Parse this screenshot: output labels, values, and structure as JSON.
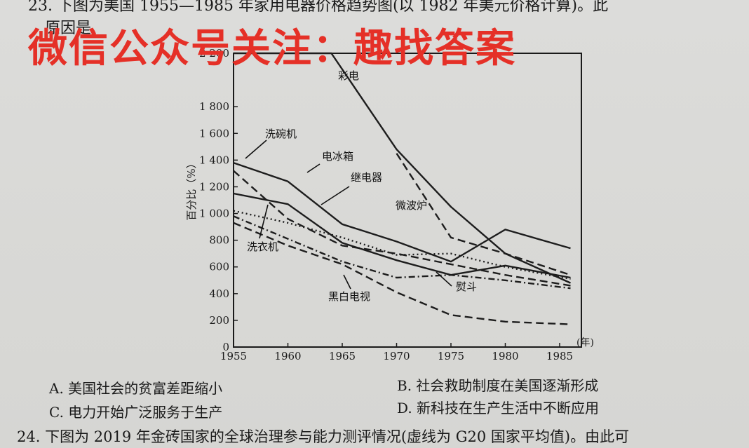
{
  "question23": {
    "stem_line1": "23. 下图为美国 1955—1985 年家用电器价格趋势图(以 1982 年美元价格计算)。此",
    "stem_line2": "原因是"
  },
  "watermark": "微信公众号关注：趣找答案",
  "chart_data": {
    "type": "line",
    "ylabel": "百分比（%）",
    "x_unit": "(年)",
    "xlim": [
      1955,
      1987
    ],
    "ylim": [
      0,
      2200
    ],
    "x_ticks": [
      "1955",
      "1960",
      "1965",
      "1970",
      "1975",
      "1980",
      "1985"
    ],
    "x_tick_values": [
      1955,
      1960,
      1965,
      1970,
      1975,
      1980,
      1985
    ],
    "y_ticks": [
      "0",
      "200",
      "400",
      "600",
      "800",
      "1 000",
      "1 200",
      "1 400",
      "1 600",
      "1 800",
      "2 200"
    ],
    "y_tick_values": [
      0,
      200,
      400,
      600,
      800,
      1000,
      1200,
      1400,
      1600,
      1800,
      2200
    ],
    "series": [
      {
        "name": "彩电",
        "style": "solid",
        "x": [
          1955,
          1964,
          1970,
          1975,
          1980,
          1986
        ],
        "y": [
          2200,
          2200,
          1480,
          1050,
          700,
          480
        ]
      },
      {
        "name": "洗碗机",
        "style": "solid",
        "x": [
          1955,
          1960,
          1965,
          1970,
          1975,
          1980,
          1986
        ],
        "y": [
          1380,
          1240,
          920,
          790,
          640,
          880,
          740
        ]
      },
      {
        "name": "电冰箱",
        "style": "solid",
        "x": [
          1955,
          1960,
          1965,
          1970,
          1975,
          1980,
          1986
        ],
        "y": [
          1150,
          1070,
          780,
          650,
          540,
          610,
          520
        ]
      },
      {
        "name": "继电器",
        "style": "dotted",
        "x": [
          1955,
          1960,
          1965,
          1970,
          1975,
          1980,
          1986
        ],
        "y": [
          1020,
          930,
          820,
          690,
          700,
          600,
          510
        ]
      },
      {
        "name": "微波炉",
        "style": "dashed",
        "x": [
          1970,
          1975,
          1980,
          1986
        ],
        "y": [
          1450,
          820,
          700,
          540
        ]
      },
      {
        "name": "洗衣机",
        "style": "dashed",
        "x": [
          1955,
          1960,
          1965,
          1970,
          1975,
          1980,
          1986
        ],
        "y": [
          1320,
          960,
          760,
          700,
          620,
          540,
          460
        ]
      },
      {
        "name": "熨斗",
        "style": "dashdot",
        "x": [
          1955,
          1960,
          1965,
          1970,
          1975,
          1980,
          1986
        ],
        "y": [
          980,
          810,
          640,
          520,
          540,
          500,
          440
        ]
      },
      {
        "name": "黑白电视",
        "style": "dashed",
        "x": [
          1955,
          1960,
          1965,
          1970,
          1975,
          1980,
          1986
        ],
        "y": [
          930,
          760,
          620,
          410,
          240,
          190,
          170
        ]
      }
    ]
  },
  "options": {
    "a": "A. 美国社会的贫富差距缩小",
    "b": "B. 社会救助制度在美国逐渐形成",
    "c": "C. 电力开始广泛服务于生产",
    "d": "D. 新科技在生产生活中不断应用"
  },
  "question24": {
    "stem": "24. 下图为 2019 年金砖国家的全球治理参与能力测评情况(虚线为 G20 国家平均值)。由此可"
  }
}
